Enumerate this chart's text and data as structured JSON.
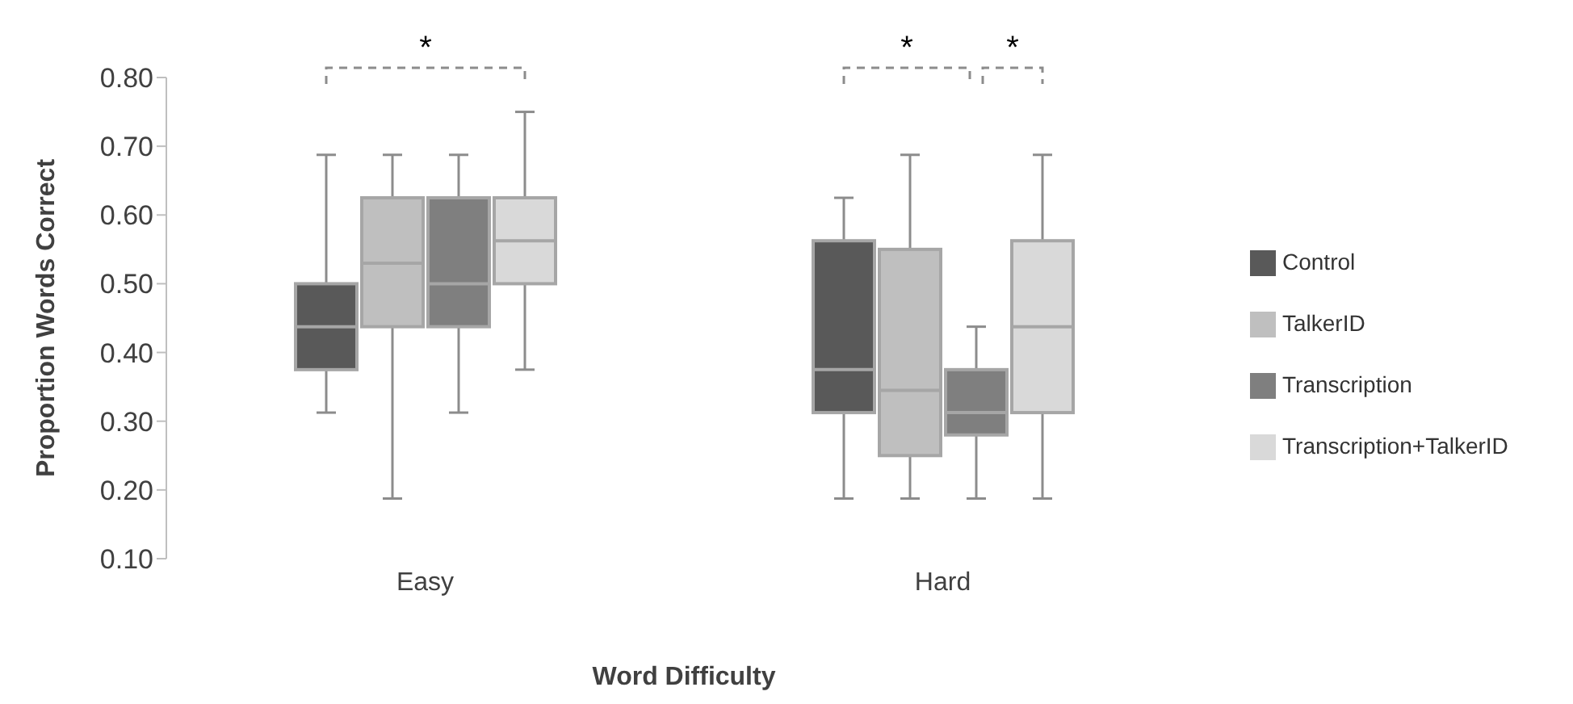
{
  "chart_data": {
    "type": "box",
    "xlabel": "Word Difficulty",
    "ylabel": "Proportion Words Correct",
    "categories": [
      "Easy",
      "Hard"
    ],
    "series": [
      {
        "name": "Control",
        "color": "#595959",
        "boxes": [
          {
            "low": 0.3125,
            "q1": 0.375,
            "median": 0.4375,
            "q3": 0.5,
            "high": 0.6875
          },
          {
            "low": 0.1875,
            "q1": 0.3125,
            "median": 0.375,
            "q3": 0.5625,
            "high": 0.625
          }
        ]
      },
      {
        "name": "TalkerID",
        "color": "#bfbfbf",
        "boxes": [
          {
            "low": 0.1875,
            "q1": 0.4375,
            "median": 0.53,
            "q3": 0.625,
            "high": 0.6875
          },
          {
            "low": 0.1875,
            "q1": 0.25,
            "median": 0.345,
            "q3": 0.55,
            "high": 0.6875
          }
        ]
      },
      {
        "name": "Transcription",
        "color": "#7f7f7f",
        "boxes": [
          {
            "low": 0.3125,
            "q1": 0.4375,
            "median": 0.5,
            "q3": 0.625,
            "high": 0.6875
          },
          {
            "low": 0.1875,
            "q1": 0.28,
            "median": 0.3125,
            "q3": 0.375,
            "high": 0.4375
          }
        ]
      },
      {
        "name": "Transcription+TalkerID",
        "color": "#d9d9d9",
        "boxes": [
          {
            "low": 0.375,
            "q1": 0.5,
            "median": 0.5625,
            "q3": 0.625,
            "high": 0.75
          },
          {
            "low": 0.1875,
            "q1": 0.3125,
            "median": 0.4375,
            "q3": 0.5625,
            "high": 0.6875
          }
        ]
      }
    ],
    "ylim": [
      0.1,
      0.8
    ],
    "yticks": [
      {
        "value": 0.1,
        "label": "0.10"
      },
      {
        "value": 0.2,
        "label": "0.20"
      },
      {
        "value": 0.3,
        "label": "0.30"
      },
      {
        "value": 0.4,
        "label": "0.40"
      },
      {
        "value": 0.5,
        "label": "0.50"
      },
      {
        "value": 0.6,
        "label": "0.60"
      },
      {
        "value": 0.7,
        "label": "0.70"
      },
      {
        "value": 0.8,
        "label": "0.80"
      }
    ],
    "legend": "right",
    "annotations": [
      "*",
      "*",
      "*"
    ]
  }
}
